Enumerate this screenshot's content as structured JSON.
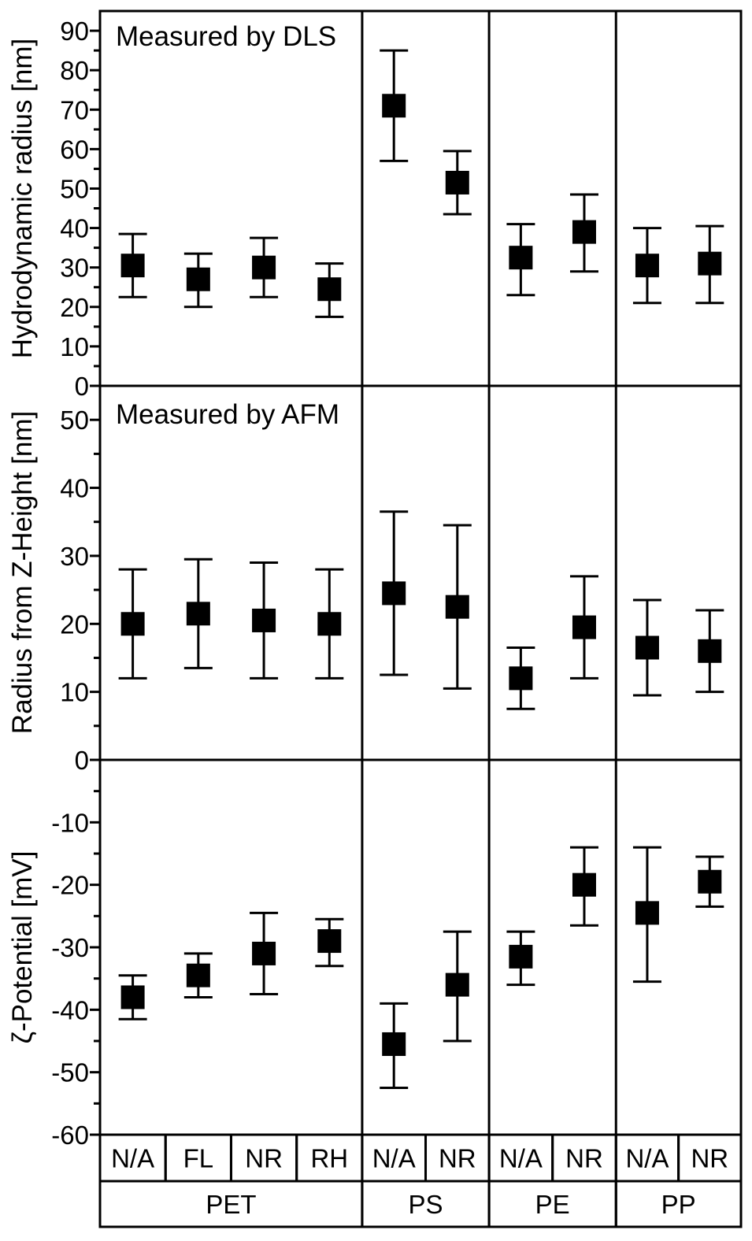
{
  "figure": {
    "background": "#ffffff",
    "foreground": "#000000",
    "marker_color": "#000000"
  },
  "x_axis": {
    "groups": [
      {
        "label": "PET",
        "columns": [
          "N/A",
          "FL",
          "NR",
          "RH"
        ]
      },
      {
        "label": "PS",
        "columns": [
          "N/A",
          "NR"
        ]
      },
      {
        "label": "PE",
        "columns": [
          "N/A",
          "NR"
        ]
      },
      {
        "label": "PP",
        "columns": [
          "N/A",
          "NR"
        ]
      }
    ]
  },
  "chart_data": [
    {
      "type": "scatter",
      "subtype": "error-bar",
      "annotation": "Measured by DLS",
      "ylabel": "Hydrodynamic radius [nm]",
      "ylim": [
        0,
        95
      ],
      "yticks": [
        0,
        10,
        20,
        30,
        40,
        50,
        60,
        70,
        80,
        90
      ],
      "minor_tick_step": 5,
      "grid": false,
      "legend": "none",
      "marker": "filled-square",
      "points": [
        {
          "group": "PET",
          "x": "N/A",
          "y": 30.5,
          "lo": 22.5,
          "hi": 38.5
        },
        {
          "group": "PET",
          "x": "FL",
          "y": 27,
          "lo": 20,
          "hi": 33.5
        },
        {
          "group": "PET",
          "x": "NR",
          "y": 30,
          "lo": 22.5,
          "hi": 37.5
        },
        {
          "group": "PET",
          "x": "RH",
          "y": 24.5,
          "lo": 17.5,
          "hi": 31
        },
        {
          "group": "PS",
          "x": "N/A",
          "y": 71,
          "lo": 57,
          "hi": 85
        },
        {
          "group": "PS",
          "x": "NR",
          "y": 51.5,
          "lo": 43.5,
          "hi": 59.5
        },
        {
          "group": "PE",
          "x": "N/A",
          "y": 32.5,
          "lo": 23,
          "hi": 41
        },
        {
          "group": "PE",
          "x": "NR",
          "y": 39,
          "lo": 29,
          "hi": 48.5
        },
        {
          "group": "PP",
          "x": "N/A",
          "y": 30.5,
          "lo": 21,
          "hi": 40
        },
        {
          "group": "PP",
          "x": "NR",
          "y": 31,
          "lo": 21,
          "hi": 40.5
        }
      ]
    },
    {
      "type": "scatter",
      "subtype": "error-bar",
      "annotation": "Measured by AFM",
      "ylabel": "Radius from Z-Height [nm]",
      "ylim": [
        0,
        55
      ],
      "yticks": [
        0,
        10,
        20,
        30,
        40,
        50
      ],
      "minor_tick_step": 5,
      "grid": false,
      "legend": "none",
      "marker": "filled-square",
      "points": [
        {
          "group": "PET",
          "x": "N/A",
          "y": 20,
          "lo": 12,
          "hi": 28
        },
        {
          "group": "PET",
          "x": "FL",
          "y": 21.5,
          "lo": 13.5,
          "hi": 29.5
        },
        {
          "group": "PET",
          "x": "NR",
          "y": 20.5,
          "lo": 12,
          "hi": 29
        },
        {
          "group": "PET",
          "x": "RH",
          "y": 20,
          "lo": 12,
          "hi": 28
        },
        {
          "group": "PS",
          "x": "N/A",
          "y": 24.5,
          "lo": 12.5,
          "hi": 36.5
        },
        {
          "group": "PS",
          "x": "NR",
          "y": 22.5,
          "lo": 10.5,
          "hi": 34.5
        },
        {
          "group": "PE",
          "x": "N/A",
          "y": 12,
          "lo": 7.5,
          "hi": 16.5
        },
        {
          "group": "PE",
          "x": "NR",
          "y": 19.5,
          "lo": 12,
          "hi": 27
        },
        {
          "group": "PP",
          "x": "N/A",
          "y": 16.5,
          "lo": 9.5,
          "hi": 23.5
        },
        {
          "group": "PP",
          "x": "NR",
          "y": 16,
          "lo": 10,
          "hi": 22
        }
      ]
    },
    {
      "type": "scatter",
      "subtype": "error-bar",
      "annotation": "",
      "ylabel": "ζ-Potential [mV]",
      "ylim": [
        -60,
        0
      ],
      "yticks": [
        -60,
        -50,
        -40,
        -30,
        -20,
        -10
      ],
      "minor_tick_step": 5,
      "grid": false,
      "legend": "none",
      "marker": "filled-square",
      "points": [
        {
          "group": "PET",
          "x": "N/A",
          "y": -38,
          "lo": -41.5,
          "hi": -34.5
        },
        {
          "group": "PET",
          "x": "FL",
          "y": -34.5,
          "lo": -38,
          "hi": -31
        },
        {
          "group": "PET",
          "x": "NR",
          "y": -31,
          "lo": -37.5,
          "hi": -24.5
        },
        {
          "group": "PET",
          "x": "RH",
          "y": -29,
          "lo": -33,
          "hi": -25.5
        },
        {
          "group": "PS",
          "x": "N/A",
          "y": -45.5,
          "lo": -52.5,
          "hi": -39
        },
        {
          "group": "PS",
          "x": "NR",
          "y": -36,
          "lo": -45,
          "hi": -27.5
        },
        {
          "group": "PE",
          "x": "N/A",
          "y": -31.5,
          "lo": -36,
          "hi": -27.5
        },
        {
          "group": "PE",
          "x": "NR",
          "y": -20,
          "lo": -26.5,
          "hi": -14
        },
        {
          "group": "PP",
          "x": "N/A",
          "y": -24.5,
          "lo": -35.5,
          "hi": -14
        },
        {
          "group": "PP",
          "x": "NR",
          "y": -19.5,
          "lo": -23.5,
          "hi": -15.5
        }
      ]
    }
  ]
}
